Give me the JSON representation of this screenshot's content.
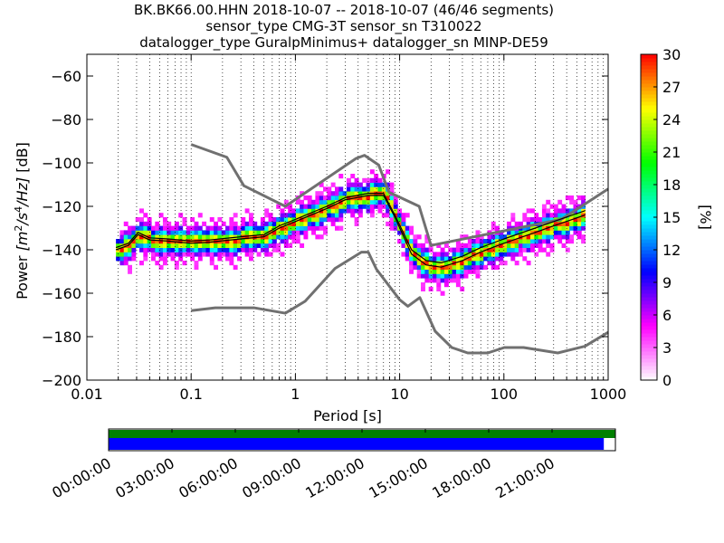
{
  "title_lines": [
    "BK.BK66.00.HHN   2018-10-07 -- 2018-10-07  (46/46 segments)",
    "sensor_type CMG-3T sensor_sn T310022",
    "datalogger_type GuralpMinimus+ datalogger_sn MINP-DE59"
  ],
  "chart_data": [
    {
      "type": "heatmap",
      "subtype": "probabilistic power spectral density",
      "xlabel": "Period [s]",
      "ylabel": "Power [m²/s⁴/Hz] [dB]",
      "ylabel_parts": [
        "Power ",
        "[m",
        "2",
        "/s",
        "4",
        "/Hz]",
        " [dB]"
      ],
      "x_scale": "log",
      "xlim": [
        0.01,
        1000
      ],
      "ylim": [
        -200,
        -50
      ],
      "x_ticks": [
        0.01,
        0.1,
        1,
        10,
        100,
        1000
      ],
      "x_tick_labels": [
        "0.01",
        "0.1",
        "1",
        "10",
        "100",
        "1000"
      ],
      "y_ticks": [
        -200,
        -180,
        -160,
        -140,
        -120,
        -100,
        -80,
        -60
      ],
      "y_tick_labels": [
        "−200",
        "−180",
        "−160",
        "−140",
        "−120",
        "−100",
        "−80",
        "−60"
      ],
      "grid": "dotted on minor period ticks",
      "colorbar": {
        "label": "[%]",
        "range": [
          0,
          30
        ],
        "ticks": [
          0,
          3,
          6,
          9,
          12,
          15,
          18,
          21,
          24,
          27,
          30
        ],
        "tick_labels": [
          "0",
          "3",
          "6",
          "9",
          "12",
          "15",
          "18",
          "21",
          "24",
          "27",
          "30"
        ],
        "colors": [
          "#ffffff",
          "#ff00ff",
          "#0000ff",
          "#00ffff",
          "#00ff00",
          "#ffff00",
          "#ff0000"
        ]
      },
      "series": [
        {
          "role": "New High Noise Model",
          "color": "#707070",
          "points": [
            [
              0.1,
              -91.5
            ],
            [
              0.22,
              -97.4
            ],
            [
              0.32,
              -110.5
            ],
            [
              0.8,
              -120
            ],
            [
              3.8,
              -98
            ],
            [
              4.6,
              -96.5
            ],
            [
              6.3,
              -101
            ],
            [
              7.9,
              -113.5
            ],
            [
              15.4,
              -120
            ],
            [
              20,
              -138
            ],
            [
              354.8,
              -126
            ],
            [
              1000,
              -112
            ]
          ]
        },
        {
          "role": "New Low Noise Model",
          "color": "#707070",
          "points": [
            [
              0.1,
              -168
            ],
            [
              0.17,
              -166.7
            ],
            [
              0.4,
              -166.7
            ],
            [
              0.8,
              -169.2
            ],
            [
              1.24,
              -163.7
            ],
            [
              2.4,
              -148.6
            ],
            [
              4.3,
              -141.1
            ],
            [
              5,
              -141.1
            ],
            [
              6,
              -149
            ],
            [
              10,
              -163
            ],
            [
              12,
              -166
            ],
            [
              15.6,
              -162
            ],
            [
              21.9,
              -177.5
            ],
            [
              31.6,
              -185
            ],
            [
              45,
              -187.5
            ],
            [
              70,
              -187.5
            ],
            [
              101,
              -185
            ],
            [
              154.5,
              -185
            ],
            [
              328.8,
              -187.5
            ],
            [
              600,
              -184.4
            ],
            [
              1000,
              -178
            ]
          ]
        },
        {
          "role": "mode",
          "color": "#000000",
          "points": [
            [
              0.019,
              -140
            ],
            [
              0.025,
              -138
            ],
            [
              0.031,
              -133
            ],
            [
              0.04,
              -135.5
            ],
            [
              0.06,
              -136
            ],
            [
              0.1,
              -137
            ],
            [
              0.15,
              -136.5
            ],
            [
              0.3,
              -135
            ],
            [
              0.5,
              -134
            ],
            [
              0.7,
              -130
            ],
            [
              1,
              -127
            ],
            [
              2,
              -121
            ],
            [
              3,
              -117
            ],
            [
              5,
              -115
            ],
            [
              7,
              -115
            ],
            [
              9,
              -125
            ],
            [
              13,
              -142
            ],
            [
              18,
              -147
            ],
            [
              25,
              -148
            ],
            [
              40,
              -145
            ],
            [
              60,
              -141
            ],
            [
              100,
              -137
            ],
            [
              200,
              -132
            ],
            [
              300,
              -129
            ],
            [
              600,
              -124
            ]
          ]
        },
        {
          "role": "mean",
          "color": "#000000",
          "points": [
            [
              0.019,
              -139
            ],
            [
              0.025,
              -137
            ],
            [
              0.031,
              -132
            ],
            [
              0.04,
              -134.5
            ],
            [
              0.06,
              -135
            ],
            [
              0.1,
              -136
            ],
            [
              0.15,
              -135.5
            ],
            [
              0.3,
              -134
            ],
            [
              0.5,
              -133
            ],
            [
              0.7,
              -129
            ],
            [
              1,
              -126
            ],
            [
              2,
              -120
            ],
            [
              3,
              -116
            ],
            [
              5,
              -114
            ],
            [
              7,
              -114
            ],
            [
              9,
              -124
            ],
            [
              13,
              -140
            ],
            [
              18,
              -145
            ],
            [
              25,
              -146
            ],
            [
              40,
              -143
            ],
            [
              60,
              -139
            ],
            [
              100,
              -135
            ],
            [
              200,
              -130
            ],
            [
              300,
              -127
            ],
            [
              600,
              -122
            ]
          ]
        }
      ]
    },
    {
      "type": "timeline",
      "time_labels": [
        "00:00:00",
        "03:00:00",
        "06:00:00",
        "09:00:00",
        "12:00:00",
        "15:00:00",
        "18:00:00",
        "21:00:00"
      ],
      "bars": [
        {
          "role": "data availability",
          "color": "#008000",
          "coverage_fraction": 1.0
        },
        {
          "role": "psd segments",
          "color": "#0000ff",
          "coverage_fraction": 0.978
        }
      ]
    }
  ]
}
